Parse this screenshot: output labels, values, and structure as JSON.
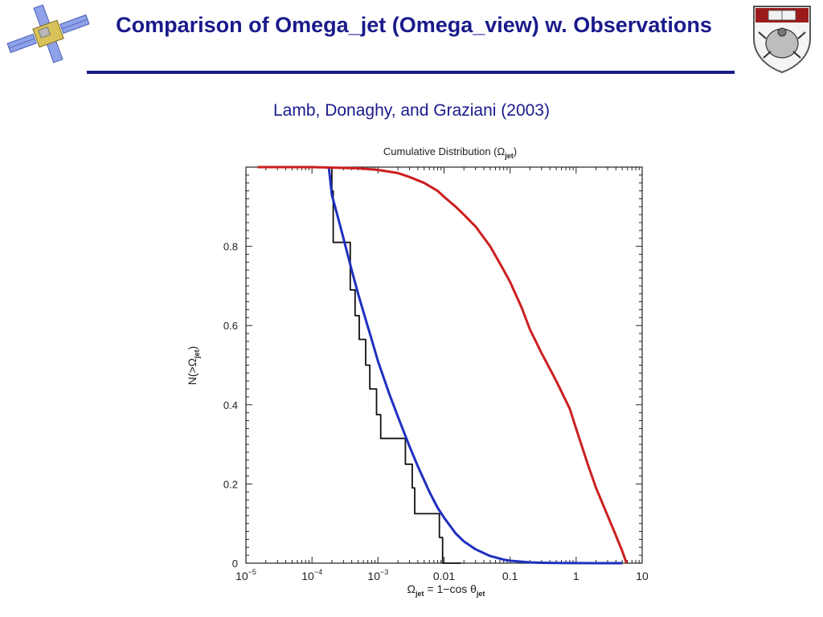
{
  "slide": {
    "title": "Comparison of Omega_jet (Omega_view) w. Observations",
    "subtitle": "Lamb, Donaghy, and Graziani (2003)"
  },
  "icons": {
    "left_logo": "satellite-icon",
    "right_logo": "university-crest-icon"
  },
  "colors": {
    "title": "#1a1a8c",
    "observed": "#111111",
    "model_blue": "#1f2fbf",
    "model_red": "#cc1f1f"
  },
  "chart_data": {
    "type": "line",
    "title": "Cumulative Distribution (Ω",
    "title_sub": "jet",
    "title_close": ")",
    "xlabel": "Ω",
    "xlabel_sub": "jet",
    "xlabel_mid": " = 1−cos θ",
    "xlabel_sub2": "jet",
    "ylabel": "N(>Ω",
    "ylabel_sub": "jet",
    "ylabel_close": ")",
    "xscale": "log",
    "xlim": [
      1e-05,
      10
    ],
    "ylim": [
      0,
      1
    ],
    "grid": false,
    "x_ticks": [
      {
        "value": 1e-05,
        "base": "10",
        "exp": "−5"
      },
      {
        "value": 0.0001,
        "base": "10",
        "exp": "−4"
      },
      {
        "value": 0.001,
        "base": "10",
        "exp": "−3"
      },
      {
        "value": 0.01,
        "base": "0.01",
        "exp": ""
      },
      {
        "value": 0.1,
        "base": "0.1",
        "exp": ""
      },
      {
        "value": 1,
        "base": "1",
        "exp": ""
      },
      {
        "value": 10,
        "base": "10",
        "exp": ""
      }
    ],
    "y_ticks": [
      {
        "value": 0,
        "label": "0"
      },
      {
        "value": 0.2,
        "label": "0.2"
      },
      {
        "value": 0.4,
        "label": "0.4"
      },
      {
        "value": 0.6,
        "label": "0.6"
      },
      {
        "value": 0.8,
        "label": "0.8"
      }
    ],
    "series": [
      {
        "style": "step",
        "color": "#111111",
        "x": [
          0.0002,
          0.0002,
          0.00021,
          0.00021,
          0.00038,
          0.00038,
          0.00045,
          0.00045,
          0.00052,
          0.00052,
          0.00065,
          0.00065,
          0.00075,
          0.00075,
          0.00095,
          0.00095,
          0.0011,
          0.0011,
          0.0026,
          0.0026,
          0.0033,
          0.0033,
          0.0036,
          0.0036,
          0.0085,
          0.0085,
          0.0095,
          0.0095,
          0.018,
          0.018
        ],
        "y": [
          1.0,
          0.94,
          0.94,
          0.81,
          0.81,
          0.69,
          0.69,
          0.625,
          0.625,
          0.565,
          0.565,
          0.5,
          0.5,
          0.44,
          0.44,
          0.375,
          0.375,
          0.315,
          0.315,
          0.25,
          0.25,
          0.19,
          0.19,
          0.125,
          0.125,
          0.065,
          0.065,
          0.0,
          0.0,
          0.0
        ]
      },
      {
        "style": "line",
        "color": "#1f2fbf",
        "x": [
          0.00018,
          0.0002,
          0.00025,
          0.0003,
          0.0004,
          0.0005,
          0.0006,
          0.0008,
          0.001,
          0.0015,
          0.002,
          0.003,
          0.004,
          0.006,
          0.008,
          0.01,
          0.015,
          0.02,
          0.03,
          0.05,
          0.08,
          0.1,
          0.2,
          0.3,
          0.5,
          1.0,
          2.0,
          5.0
        ],
        "y": [
          1.0,
          0.93,
          0.87,
          0.82,
          0.74,
          0.68,
          0.635,
          0.565,
          0.51,
          0.425,
          0.37,
          0.295,
          0.245,
          0.18,
          0.14,
          0.115,
          0.075,
          0.055,
          0.035,
          0.018,
          0.009,
          0.006,
          0.002,
          0.001,
          0.0005,
          0.0002,
          0.0001,
          0.0
        ]
      },
      {
        "style": "line",
        "color": "#cc1f1f",
        "x": [
          1.5e-05,
          0.0001,
          0.0005,
          0.001,
          0.002,
          0.003,
          0.005,
          0.008,
          0.01,
          0.015,
          0.02,
          0.03,
          0.05,
          0.08,
          0.1,
          0.15,
          0.2,
          0.3,
          0.5,
          0.8,
          1.0,
          1.5,
          2.0,
          3.0,
          4.0,
          5.0,
          5.8
        ],
        "y": [
          1.0,
          1.0,
          0.997,
          0.993,
          0.985,
          0.975,
          0.96,
          0.94,
          0.925,
          0.9,
          0.88,
          0.85,
          0.8,
          0.74,
          0.71,
          0.645,
          0.59,
          0.53,
          0.46,
          0.39,
          0.34,
          0.25,
          0.19,
          0.12,
          0.07,
          0.03,
          0.0
        ]
      }
    ]
  }
}
